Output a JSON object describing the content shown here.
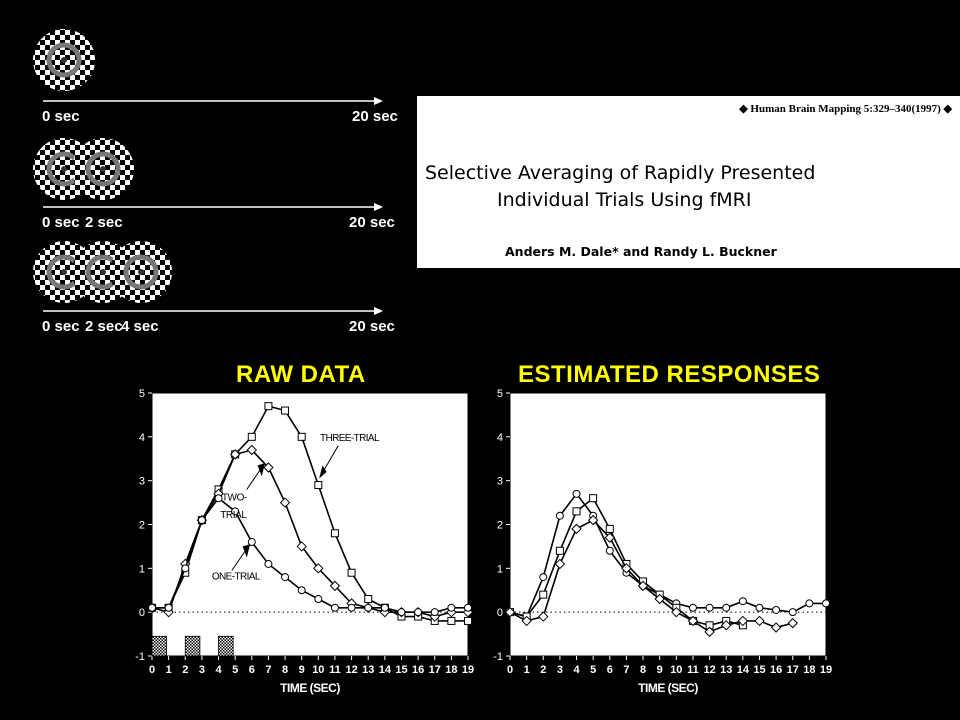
{
  "stimulus": {
    "rows": [
      {
        "labels": [
          "0 sec"
        ],
        "end_label": "20 sec"
      },
      {
        "labels": [
          "0 sec",
          "2 sec"
        ],
        "end_label": "20 sec"
      },
      {
        "labels": [
          "0 sec",
          "2 sec",
          "4 sec"
        ],
        "end_label": "20 sec"
      }
    ],
    "icon": "checkerboard-radial-icon"
  },
  "paper": {
    "journal": "◆ Human Brain Mapping 5:329–340(1997) ◆",
    "title_line1": "Selective Averaging of Rapidly Presented",
    "title_line2": "Individual Trials Using fMRI",
    "authors": "Anders M. Dale* and Randy L. Buckner"
  },
  "chart_data": [
    {
      "type": "line",
      "title": "RAW DATA",
      "xlabel": "TIME (SEC)",
      "ylabel": "",
      "x": [
        0,
        1,
        2,
        3,
        4,
        5,
        6,
        7,
        8,
        9,
        10,
        11,
        12,
        13,
        14,
        15,
        16,
        17,
        18,
        19
      ],
      "xlim": [
        0,
        19
      ],
      "ylim": [
        -1,
        5
      ],
      "yticks": [
        -1,
        0,
        1,
        2,
        3,
        4,
        5
      ],
      "grid": false,
      "baseline": 0,
      "series": [
        {
          "name": "THREE-TRIAL",
          "marker": "square",
          "values": [
            0.1,
            0.1,
            0.9,
            2.1,
            2.8,
            3.6,
            4.0,
            4.7,
            4.6,
            4.0,
            2.9,
            1.8,
            0.9,
            0.3,
            0.1,
            -0.1,
            -0.1,
            -0.2,
            -0.2,
            -0.2
          ]
        },
        {
          "name": "TWO-TRIAL",
          "marker": "diamond",
          "values": [
            0.1,
            0.0,
            1.1,
            2.1,
            2.7,
            3.6,
            3.7,
            3.3,
            2.5,
            1.5,
            1.0,
            0.6,
            0.2,
            0.1,
            0.0,
            0.0,
            0.0,
            -0.1,
            0.0,
            0.0
          ]
        },
        {
          "name": "ONE-TRIAL",
          "marker": "circle",
          "values": [
            0.1,
            0.1,
            1.0,
            2.1,
            2.6,
            2.3,
            1.6,
            1.1,
            0.8,
            0.5,
            0.3,
            0.1,
            0.1,
            0.1,
            0.1,
            0.0,
            0.0,
            0.0,
            0.1,
            0.1
          ]
        }
      ],
      "annotations": [
        "THREE-TRIAL",
        "TWO-TRIAL",
        "ONE-TRIAL"
      ],
      "stimulus_bars_at": [
        0,
        2,
        4
      ]
    },
    {
      "type": "line",
      "title": "ESTIMATED RESPONSES",
      "xlabel": "TIME (SEC)",
      "ylabel": "",
      "x": [
        0,
        1,
        2,
        3,
        4,
        5,
        6,
        7,
        8,
        9,
        10,
        11,
        12,
        13,
        14,
        15,
        16,
        17,
        18,
        19
      ],
      "xlim": [
        0,
        19
      ],
      "ylim": [
        -1,
        5
      ],
      "yticks": [
        -1,
        0,
        1,
        2,
        3,
        4,
        5
      ],
      "grid": false,
      "baseline": 0,
      "series": [
        {
          "marker": "circle",
          "values": [
            0.0,
            -0.1,
            0.8,
            2.2,
            2.7,
            2.2,
            1.4,
            0.9,
            0.6,
            0.4,
            0.2,
            0.1,
            0.1,
            0.1,
            0.25,
            0.1,
            0.05,
            0.0,
            0.2,
            0.2
          ]
        },
        {
          "marker": "square",
          "values": [
            0.0,
            -0.1,
            0.4,
            1.4,
            2.3,
            2.6,
            1.9,
            1.1,
            0.7,
            0.4,
            0.1,
            -0.2,
            -0.3,
            -0.2,
            -0.3,
            null,
            null,
            null,
            null,
            null
          ]
        },
        {
          "marker": "diamond",
          "values": [
            0.0,
            -0.2,
            -0.1,
            1.1,
            1.9,
            2.1,
            1.7,
            1.0,
            0.6,
            0.3,
            0.0,
            -0.2,
            -0.45,
            -0.3,
            -0.2,
            -0.2,
            -0.35,
            -0.25,
            null,
            null
          ]
        }
      ]
    }
  ]
}
